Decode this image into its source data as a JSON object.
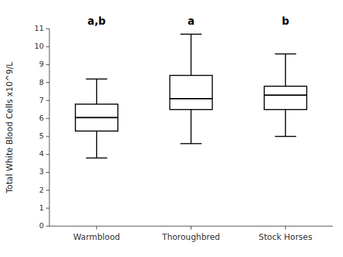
{
  "chart_data": {
    "type": "box",
    "categories": [
      "Warmblood",
      "Thoroughbred",
      "Stock Horses"
    ],
    "boxes": [
      {
        "whislo": 3.8,
        "q1": 5.3,
        "med": 6.05,
        "q3": 6.8,
        "whishi": 8.2
      },
      {
        "whislo": 4.6,
        "q1": 6.5,
        "med": 7.1,
        "q3": 8.4,
        "whishi": 10.7
      },
      {
        "whislo": 5.0,
        "q1": 6.5,
        "med": 7.3,
        "q3": 7.8,
        "whishi": 9.6
      }
    ],
    "annotations": [
      "a,b",
      "a",
      "b"
    ],
    "y_label": "Total White Blood Cells x10^9/L",
    "ylim": [
      0,
      11
    ],
    "yticks": [
      0,
      1,
      2,
      3,
      4,
      5,
      6,
      7,
      8,
      9,
      10,
      11
    ],
    "color": "black",
    "grid": false
  }
}
